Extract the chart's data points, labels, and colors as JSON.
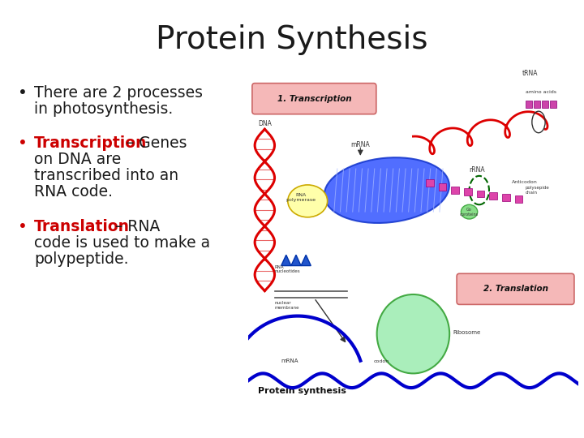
{
  "title": "Protein Synthesis",
  "title_fontsize": 28,
  "title_color": "#1a1a1a",
  "background_color": "#ffffff",
  "text_color": "#1a1a1a",
  "red_color": "#cc0000",
  "text_fontsize": 13.5,
  "bullet1_line1": "There are 2 processes",
  "bullet1_line2": "in photosynthesis.",
  "bullet2_red": "Transcription",
  "bullet2_black": " – Genes",
  "bullet2_line2": "on DNA are",
  "bullet2_line3": "transcribed into an",
  "bullet2_line4": "RNA code.",
  "bullet3_red": "Translation",
  "bullet3_black": " – RNA",
  "bullet3_line2": "code is used to make a",
  "bullet3_line3": "polypeptide.",
  "fig_width": 7.2,
  "fig_height": 5.4,
  "fig_dpi": 100
}
